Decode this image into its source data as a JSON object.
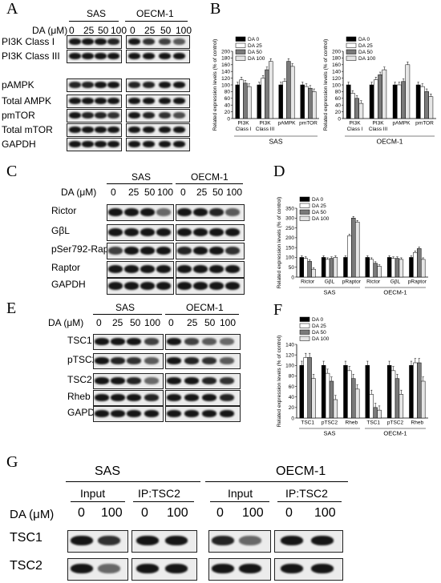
{
  "A": {
    "label": "A",
    "cell_lines": [
      "SAS",
      "OECM-1"
    ],
    "dose_label": "DA (μM)",
    "doses": [
      "0",
      "25",
      "50",
      "100"
    ],
    "rows": [
      "PI3K Class I",
      "PI3K Class III",
      "pAMPK",
      "Total AMPK",
      "pmTOR",
      "Total mTOR",
      "GAPDH"
    ]
  },
  "B": {
    "label": "B",
    "ylabel": "Related expression levels (% of control)",
    "legend": [
      "DA 0",
      "DA 25",
      "DA 50",
      "DA 100"
    ],
    "left": {
      "cell_line": "SAS",
      "categories": [
        "PI3K Class I",
        "PI3K Class III",
        "pAMPK",
        "pmTOR"
      ]
    },
    "right": {
      "cell_line": "OECM-1",
      "categories": [
        "PI3K Class I",
        "PI3K Class III",
        "pAMPK",
        "pmTOR"
      ]
    }
  },
  "C": {
    "label": "C",
    "cell_lines": [
      "SAS",
      "OECM-1"
    ],
    "dose_label": "DA (μM)",
    "doses": [
      "0",
      "25",
      "50",
      "100"
    ],
    "rows": [
      "Rictor",
      "GβL",
      "pSer792-Raptor",
      "Raptor",
      "GAPDH"
    ]
  },
  "D": {
    "label": "D",
    "ylabel": "Related expression levels (% of control)",
    "legend": [
      "DA 0",
      "DA 25",
      "DA 50",
      "DA 100"
    ],
    "categories": [
      "Rictor",
      "GβL",
      "pRaptor",
      "Rictor",
      "GβL",
      "pRaptor"
    ],
    "groups": [
      "SAS",
      "OECM-1"
    ]
  },
  "E": {
    "label": "E",
    "cell_lines": [
      "SAS",
      "OECM-1"
    ],
    "dose_label": "DA (μM)",
    "doses": [
      "0",
      "25",
      "50",
      "100"
    ],
    "rows": [
      "TSC1",
      "pTSC2",
      "TSC2",
      "Rheb",
      "GAPDH"
    ]
  },
  "F": {
    "label": "F",
    "ylabel": "Related expression levels (% of control)",
    "legend": [
      "DA 0",
      "DA 25",
      "DA 50",
      "DA 100"
    ],
    "categories": [
      "TSC1",
      "pTSC2",
      "Rheb",
      "TSC1",
      "pTSC2",
      "Rheb"
    ],
    "groups": [
      "SAS",
      "OECM-1"
    ]
  },
  "G": {
    "label": "G",
    "cell_lines": [
      "SAS",
      "OECM-1"
    ],
    "sections": [
      "Input",
      "IP:TSC2"
    ],
    "dose_label": "DA (μM)",
    "doses": [
      "0",
      "100"
    ],
    "rows": [
      "TSC1",
      "TSC2"
    ]
  },
  "chart_data": [
    {
      "type": "bar",
      "title": "SAS",
      "ylabel": "Related expression levels (% of control)",
      "categories": [
        "PI3K Class I",
        "PI3K Class III",
        "pAMPK",
        "pmTOR"
      ],
      "ylim": [
        0,
        200
      ],
      "yticks": [
        0,
        20,
        40,
        60,
        80,
        100,
        120,
        140,
        160,
        180,
        200
      ],
      "series": [
        {
          "name": "DA 0",
          "values": [
            100,
            100,
            100,
            100
          ]
        },
        {
          "name": "DA 25",
          "values": [
            115,
            120,
            110,
            95
          ]
        },
        {
          "name": "DA 50",
          "values": [
            105,
            145,
            170,
            90
          ]
        },
        {
          "name": "DA 100",
          "values": [
            95,
            170,
            155,
            80
          ]
        }
      ],
      "legend": "top-left"
    },
    {
      "type": "bar",
      "title": "OECM-1",
      "ylabel": "Related expression levels (% of control)",
      "categories": [
        "PI3K Class I",
        "PI3K Class III",
        "pAMPK",
        "pmTOR"
      ],
      "ylim": [
        0,
        200
      ],
      "yticks": [
        0,
        20,
        40,
        60,
        80,
        100,
        120,
        140,
        160,
        180,
        200
      ],
      "series": [
        {
          "name": "DA 0",
          "values": [
            100,
            100,
            100,
            100
          ]
        },
        {
          "name": "DA 25",
          "values": [
            75,
            115,
            100,
            95
          ]
        },
        {
          "name": "DA 50",
          "values": [
            60,
            130,
            110,
            80
          ]
        },
        {
          "name": "DA 100",
          "values": [
            45,
            145,
            160,
            65
          ]
        }
      ],
      "legend": "top-left"
    },
    {
      "type": "bar",
      "title": "",
      "ylabel": "Related expression levels (% of control)",
      "categories": [
        "Rictor",
        "GβL",
        "pRaptor",
        "Rictor",
        "GβL",
        "pRaptor"
      ],
      "groups": [
        "SAS",
        "OECM-1"
      ],
      "ylim": [
        0,
        350
      ],
      "yticks": [
        0,
        50,
        100,
        150,
        200,
        250,
        300,
        350
      ],
      "series": [
        {
          "name": "DA 0",
          "values": [
            100,
            100,
            100,
            100,
            100,
            100
          ]
        },
        {
          "name": "DA 25",
          "values": [
            95,
            90,
            210,
            90,
            95,
            125
          ]
        },
        {
          "name": "DA 50",
          "values": [
            80,
            95,
            300,
            70,
            95,
            145
          ]
        },
        {
          "name": "DA 100",
          "values": [
            40,
            100,
            280,
            55,
            90,
            90
          ]
        }
      ],
      "legend": "top-left"
    },
    {
      "type": "bar",
      "title": "",
      "ylabel": "Related expression levels (% of control)",
      "categories": [
        "TSC1",
        "pTSC2",
        "Rheb",
        "TSC1",
        "pTSC2",
        "Rheb"
      ],
      "groups": [
        "SAS",
        "OECM-1"
      ],
      "ylim": [
        0,
        140
      ],
      "yticks": [
        0,
        20,
        40,
        60,
        80,
        100,
        120,
        140
      ],
      "series": [
        {
          "name": "DA 0",
          "values": [
            100,
            100,
            100,
            100,
            100,
            100
          ]
        },
        {
          "name": "DA 25",
          "values": [
            115,
            85,
            90,
            45,
            90,
            105
          ]
        },
        {
          "name": "DA 50",
          "values": [
            115,
            70,
            75,
            20,
            75,
            105
          ]
        },
        {
          "name": "DA 100",
          "values": [
            75,
            35,
            55,
            15,
            45,
            70
          ]
        }
      ],
      "legend": "top-left"
    }
  ]
}
